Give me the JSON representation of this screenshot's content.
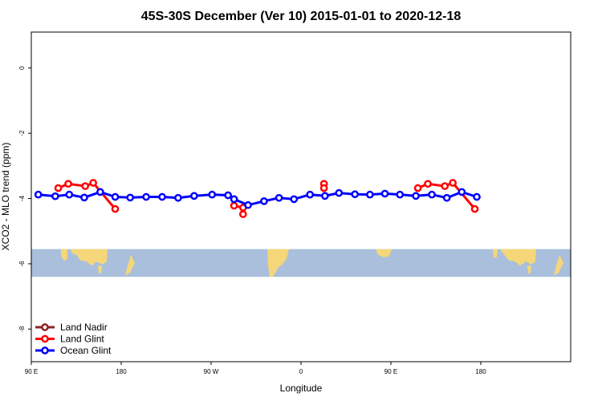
{
  "chart_data": {
    "type": "line",
    "title": "45S-30S December (Ver 10)   2015-01-01 to 2020-12-18",
    "xlabel": "Longitude",
    "ylabel": "XCO2 - MLO trend (ppm)",
    "xlim": [
      0,
      540
    ],
    "ylim": [
      -9,
      1.1
    ],
    "x_ticks": [
      {
        "value": 0,
        "label": "90 E"
      },
      {
        "value": 90,
        "label": "180"
      },
      {
        "value": 180,
        "label": "90 W"
      },
      {
        "value": 270,
        "label": "0"
      },
      {
        "value": 360,
        "label": "90 E"
      },
      {
        "value": 450,
        "label": "180"
      }
    ],
    "y_ticks": [
      {
        "value": 0,
        "label": "0"
      },
      {
        "value": -2,
        "label": "-2"
      },
      {
        "value": -4,
        "label": "-4"
      },
      {
        "value": -6,
        "label": "-6"
      },
      {
        "value": -8,
        "label": "-8"
      }
    ],
    "map_strip": {
      "y_top": -5.55,
      "y_bottom": -6.4,
      "ocean_color": "#a9bfdc",
      "land_color": "#f5d77a"
    },
    "legend": {
      "position": "bottom-left"
    },
    "series": [
      {
        "name": "Land Nadir",
        "color": "#8b2323",
        "segments": []
      },
      {
        "name": "Land Glint",
        "color": "#ff0000",
        "segments": [
          [
            [
              27,
              -3.68
            ],
            [
              37,
              -3.55
            ],
            [
              54,
              -3.62
            ],
            [
              62,
              -3.52
            ],
            [
              84,
              -4.32
            ]
          ],
          [
            [
              203,
              -4.22
            ],
            [
              212,
              -4.28
            ]
          ],
          [
            [
              212,
              -4.48
            ]
          ],
          [
            [
              293,
              -3.55
            ],
            [
              293,
              -3.68
            ]
          ],
          [
            [
              387,
              -3.68
            ],
            [
              397,
              -3.55
            ],
            [
              414,
              -3.62
            ],
            [
              422,
              -3.52
            ],
            [
              444,
              -4.32
            ]
          ]
        ]
      },
      {
        "name": "Ocean Glint",
        "color": "#0000ff",
        "segments": [
          [
            [
              7,
              -3.88
            ],
            [
              24,
              -3.93
            ],
            [
              38,
              -3.88
            ],
            [
              53,
              -3.97
            ],
            [
              69,
              -3.8
            ],
            [
              84,
              -3.95
            ],
            [
              99,
              -3.97
            ],
            [
              115,
              -3.95
            ],
            [
              131,
              -3.95
            ],
            [
              147,
              -3.98
            ],
            [
              163,
              -3.92
            ],
            [
              181,
              -3.88
            ],
            [
              197,
              -3.9
            ],
            [
              203,
              -4.02
            ],
            [
              217,
              -4.2
            ],
            [
              233,
              -4.08
            ],
            [
              248,
              -3.98
            ],
            [
              263,
              -4.02
            ],
            [
              279,
              -3.88
            ],
            [
              294,
              -3.92
            ],
            [
              308,
              -3.83
            ],
            [
              324,
              -3.87
            ],
            [
              339,
              -3.88
            ],
            [
              354,
              -3.85
            ],
            [
              369,
              -3.88
            ],
            [
              385,
              -3.92
            ],
            [
              401,
              -3.88
            ],
            [
              416,
              -3.98
            ],
            [
              431,
              -3.8
            ],
            [
              446,
              -3.95
            ]
          ]
        ]
      }
    ]
  }
}
